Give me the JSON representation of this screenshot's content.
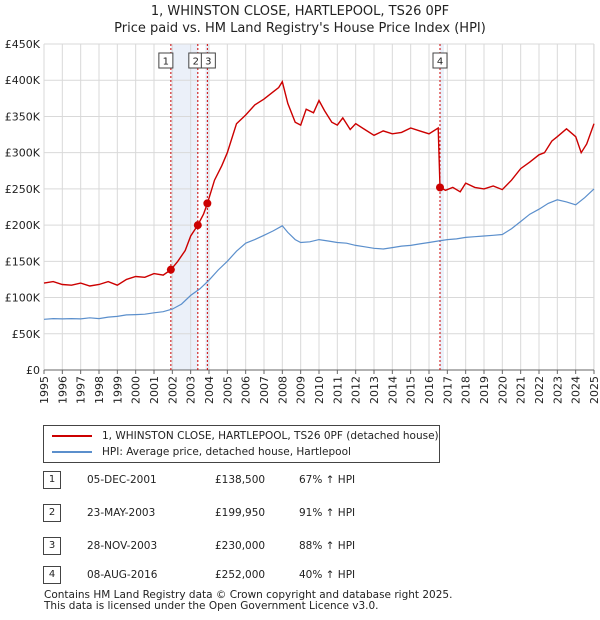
{
  "header": {
    "title_line1": "1, WHINSTON CLOSE, HARTLEPOOL, TS26 0PF",
    "title_line2": "Price paid vs. HM Land Registry's House Price Index (HPI)"
  },
  "legend": {
    "property_label": "1, WHINSTON CLOSE, HARTLEPOOL, TS26 0PF (detached house)",
    "hpi_label": "HPI: Average price, detached house, Hartlepool"
  },
  "sales": [
    {
      "num": "1",
      "date": "05-DEC-2001",
      "price": "£138,500",
      "hpi": "67% ↑ HPI"
    },
    {
      "num": "2",
      "date": "23-MAY-2003",
      "price": "£199,950",
      "hpi": "91% ↑ HPI"
    },
    {
      "num": "3",
      "date": "28-NOV-2003",
      "price": "£230,000",
      "hpi": "88% ↑ HPI"
    },
    {
      "num": "4",
      "date": "08-AUG-2016",
      "price": "£252,000",
      "hpi": "40% ↑ HPI"
    }
  ],
  "footer": {
    "line1": "Contains HM Land Registry data © Crown copyright and database right 2025.",
    "line2": "This data is licensed under the Open Government Licence v3.0."
  },
  "colors": {
    "property": "#cc0000",
    "hpi": "#5b8fcc",
    "grid": "#d9d9d9",
    "band": "#dde6f5",
    "marker_line": "#cc0000"
  },
  "chart_data": {
    "type": "line",
    "title": "1, WHINSTON CLOSE, HARTLEPOOL, TS26 0PF",
    "subtitle": "Price paid vs. HM Land Registry's House Price Index (HPI)",
    "xlabel": "",
    "ylabel": "",
    "xlim": [
      1995,
      2025
    ],
    "ylim": [
      0,
      450000
    ],
    "x_ticks": [
      "1995",
      "1996",
      "1997",
      "1998",
      "1999",
      "2000",
      "2001",
      "2002",
      "2003",
      "2004",
      "2005",
      "2006",
      "2007",
      "2008",
      "2009",
      "2010",
      "2011",
      "2012",
      "2013",
      "2014",
      "2015",
      "2016",
      "2017",
      "2018",
      "2019",
      "2020",
      "2021",
      "2022",
      "2023",
      "2024",
      "2025"
    ],
    "y_ticks": [
      {
        "value": 0,
        "label": "£0"
      },
      {
        "value": 50000,
        "label": "£50K"
      },
      {
        "value": 100000,
        "label": "£100K"
      },
      {
        "value": 150000,
        "label": "£150K"
      },
      {
        "value": 200000,
        "label": "£200K"
      },
      {
        "value": 250000,
        "label": "£250K"
      },
      {
        "value": 300000,
        "label": "£300K"
      },
      {
        "value": 350000,
        "label": "£350K"
      },
      {
        "value": 400000,
        "label": "£400K"
      },
      {
        "value": 450000,
        "label": "£450K"
      }
    ],
    "grid": true,
    "legend_position": "below",
    "sale_markers": [
      {
        "label": "1",
        "x": 2001.92,
        "y": 138500
      },
      {
        "label": "2",
        "x": 2003.39,
        "y": 199950
      },
      {
        "label": "3",
        "x": 2003.91,
        "y": 230000
      },
      {
        "label": "4",
        "x": 2016.6,
        "y": 252000
      }
    ],
    "series": [
      {
        "name": "1, WHINSTON CLOSE, HARTLEPOOL, TS26 0PF (detached house)",
        "x": [
          1995,
          1995.5,
          1996,
          1996.5,
          1997,
          1997.5,
          1998,
          1998.5,
          1999,
          1999.5,
          2000,
          2000.5,
          2001,
          2001.5,
          2001.92,
          2002.3,
          2002.7,
          2003.0,
          2003.39,
          2003.7,
          2003.91,
          2004.3,
          2004.7,
          2005.0,
          2005.5,
          2006.0,
          2006.5,
          2007.0,
          2007.5,
          2007.8,
          2008.0,
          2008.3,
          2008.7,
          2009.0,
          2009.3,
          2009.7,
          2010.0,
          2010.3,
          2010.7,
          2011.0,
          2011.3,
          2011.7,
          2012.0,
          2012.5,
          2013.0,
          2013.5,
          2014.0,
          2014.5,
          2015.0,
          2015.5,
          2016.0,
          2016.5,
          2016.6,
          2016.9,
          2017.3,
          2017.7,
          2018.0,
          2018.5,
          2019.0,
          2019.5,
          2020.0,
          2020.5,
          2021.0,
          2021.5,
          2022.0,
          2022.3,
          2022.7,
          2023.0,
          2023.5,
          2024.0,
          2024.3,
          2024.6,
          2025.0
        ],
        "values": [
          120000,
          122000,
          118000,
          117000,
          120000,
          116000,
          118000,
          122000,
          117000,
          125000,
          129000,
          128000,
          133000,
          131000,
          138500,
          150000,
          165000,
          185000,
          199950,
          215000,
          230000,
          262000,
          282000,
          300000,
          340000,
          352000,
          366000,
          374000,
          384000,
          390000,
          398000,
          368000,
          342000,
          338000,
          360000,
          355000,
          372000,
          358000,
          342000,
          338000,
          348000,
          332000,
          340000,
          332000,
          324000,
          330000,
          326000,
          328000,
          334000,
          330000,
          326000,
          334000,
          252000,
          248000,
          252000,
          246000,
          258000,
          252000,
          250000,
          254000,
          249000,
          262000,
          278000,
          287000,
          297000,
          300000,
          316000,
          322000,
          333000,
          322000,
          300000,
          312000,
          340000
        ]
      },
      {
        "name": "HPI: Average price, detached house, Hartlepool",
        "x": [
          1995,
          1995.5,
          1996,
          1996.5,
          1997,
          1997.5,
          1998,
          1998.5,
          1999,
          1999.5,
          2000,
          2000.5,
          2001,
          2001.5,
          2002,
          2002.5,
          2003,
          2003.5,
          2004,
          2004.5,
          2005,
          2005.5,
          2006,
          2006.5,
          2007,
          2007.5,
          2008,
          2008.3,
          2008.7,
          2009,
          2009.5,
          2010,
          2010.5,
          2011,
          2011.5,
          2012,
          2012.5,
          2013,
          2013.5,
          2014,
          2014.5,
          2015,
          2015.5,
          2016,
          2016.5,
          2017,
          2017.5,
          2018,
          2018.5,
          2019,
          2019.5,
          2020,
          2020.5,
          2021,
          2021.5,
          2022,
          2022.5,
          2023,
          2023.5,
          2024,
          2024.5,
          2025
        ],
        "values": [
          70000,
          71000,
          70500,
          71000,
          70500,
          72000,
          71000,
          73000,
          74000,
          76000,
          76500,
          77000,
          79000,
          80500,
          84000,
          91000,
          103000,
          112000,
          124000,
          138000,
          150000,
          164000,
          175000,
          180000,
          186000,
          192000,
          199000,
          190000,
          180000,
          176000,
          177000,
          180000,
          178000,
          176000,
          175000,
          172000,
          170000,
          168000,
          167000,
          169000,
          171000,
          172000,
          174000,
          176000,
          178000,
          180000,
          181000,
          183000,
          184000,
          185000,
          186000,
          187000,
          195000,
          205000,
          215000,
          222000,
          230000,
          235000,
          232000,
          228000,
          238000,
          250000
        ]
      }
    ]
  }
}
